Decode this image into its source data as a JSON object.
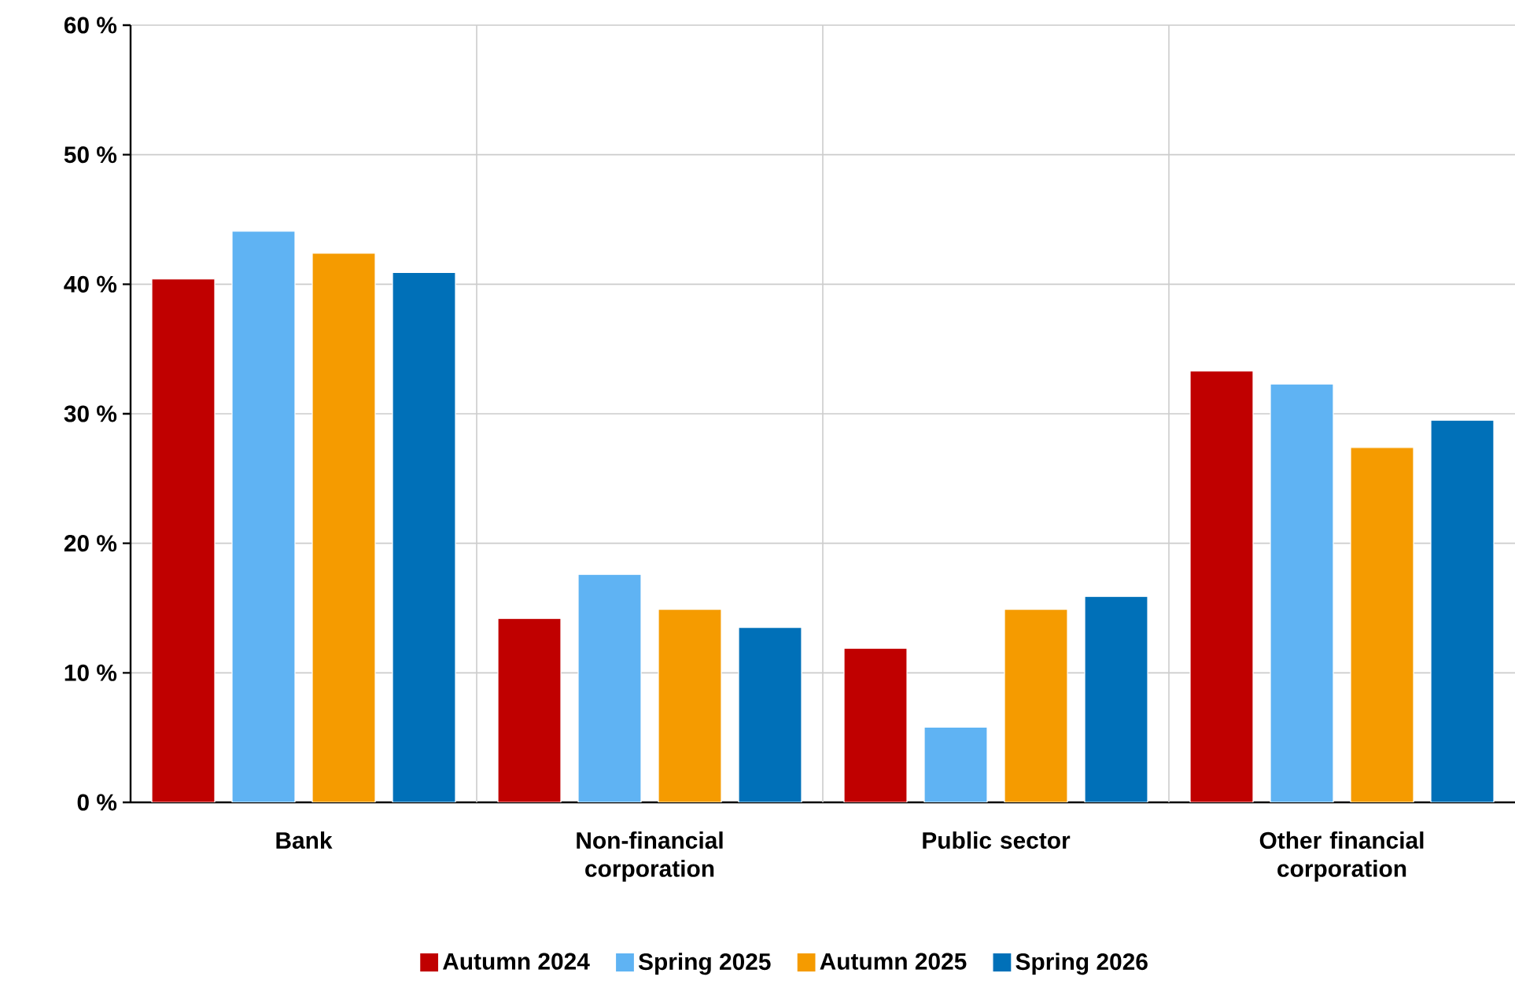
{
  "chart_data": {
    "type": "bar",
    "categories": [
      "Bank",
      "Non-financial corporation",
      "Public sector",
      "Other financial corporation"
    ],
    "series": [
      {
        "name": "Autumn 2024",
        "color": "#c00000",
        "values": [
          40.4,
          14.2,
          11.9,
          33.3
        ]
      },
      {
        "name": "Spring 2025",
        "color": "#5fb3f3",
        "values": [
          44.1,
          17.6,
          5.8,
          32.3
        ]
      },
      {
        "name": "Autumn 2025",
        "color": "#f59b00",
        "values": [
          42.4,
          14.9,
          14.9,
          27.4
        ]
      },
      {
        "name": "Spring 2026",
        "color": "#0070b8",
        "values": [
          40.9,
          13.5,
          15.9,
          29.5
        ]
      }
    ],
    "ylim": [
      0,
      60
    ],
    "yticks": [
      {
        "value": 0,
        "label": "0 %"
      },
      {
        "value": 10,
        "label": "10 %"
      },
      {
        "value": 20,
        "label": "20 %"
      },
      {
        "value": 30,
        "label": "30 %"
      },
      {
        "value": 40,
        "label": "40 %"
      },
      {
        "value": 50,
        "label": "50 %"
      },
      {
        "value": 60,
        "label": "60 %"
      }
    ],
    "grid": true,
    "legend": "bottom"
  }
}
